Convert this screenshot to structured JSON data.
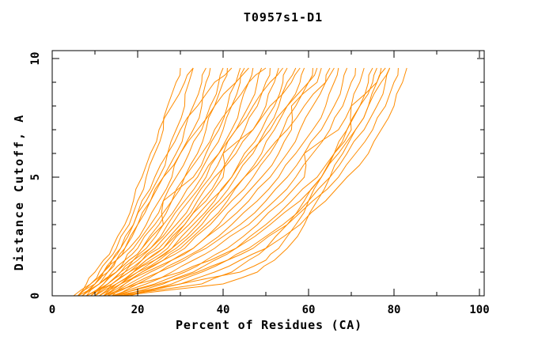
{
  "chart_data": {
    "type": "line",
    "title": "T0957s1-D1",
    "xlabel": "Percent of Residues (CA)",
    "ylabel": "Distance Cutoff, A",
    "xlim": [
      0,
      101
    ],
    "ylim": [
      0,
      10.3
    ],
    "grid": false,
    "legend": "none",
    "x_major_ticks": [
      0,
      20,
      40,
      60,
      80,
      100
    ],
    "x_tick_labels": [
      "0",
      "20",
      "40",
      "60",
      "80",
      "100"
    ],
    "x_minor_tick_step": 10,
    "y_major_ticks": [
      0,
      5,
      10
    ],
    "y_tick_labels": [
      "0",
      "5",
      "10"
    ],
    "y_minor_tick_step": 1,
    "line_color": "#ff8c00",
    "axis_color": "#000000",
    "background_color": "#ffffff",
    "cutoff_levels": [
      0,
      0.5,
      1,
      1.5,
      2,
      3,
      4,
      5,
      6,
      7,
      8,
      9,
      9.6
    ],
    "series_x_at_cutoffs": [
      [
        6,
        9,
        11,
        13,
        15,
        18,
        20,
        22,
        24,
        26,
        27,
        29,
        30
      ],
      [
        6,
        10,
        12,
        14,
        16,
        19,
        22,
        25,
        27,
        29,
        31,
        32,
        33
      ],
      [
        7,
        10,
        13,
        15,
        17,
        20,
        23,
        26,
        29,
        31,
        33,
        35,
        36
      ],
      [
        5,
        9,
        12,
        15,
        18,
        22,
        25,
        28,
        30,
        33,
        35,
        36,
        37
      ],
      [
        8,
        12,
        15,
        17,
        19,
        23,
        26,
        29,
        32,
        35,
        37,
        39,
        40
      ],
      [
        7,
        11,
        14,
        17,
        20,
        24,
        28,
        31,
        34,
        36,
        38,
        40,
        41
      ],
      [
        9,
        13,
        16,
        19,
        22,
        26,
        26,
        33,
        36,
        39,
        41,
        43,
        44
      ],
      [
        6,
        11,
        15,
        18,
        21,
        26,
        30,
        34,
        37,
        40,
        42,
        44,
        45
      ],
      [
        10,
        14,
        17,
        20,
        23,
        28,
        32,
        36,
        39,
        42,
        44,
        46,
        47
      ],
      [
        8,
        13,
        17,
        21,
        24,
        29,
        33,
        37,
        40,
        43,
        46,
        48,
        49
      ],
      [
        11,
        15,
        19,
        22,
        26,
        31,
        35,
        39,
        42,
        45,
        48,
        50,
        51
      ],
      [
        9,
        14,
        18,
        22,
        26,
        31,
        36,
        40,
        40,
        47,
        50,
        52,
        53
      ],
      [
        12,
        16,
        20,
        24,
        28,
        33,
        38,
        42,
        45,
        49,
        52,
        54,
        55
      ],
      [
        10,
        15,
        19,
        24,
        28,
        34,
        39,
        43,
        47,
        50,
        53,
        55,
        57
      ],
      [
        13,
        17,
        21,
        26,
        30,
        36,
        41,
        45,
        49,
        52,
        55,
        58,
        59
      ],
      [
        11,
        16,
        21,
        26,
        31,
        37,
        42,
        47,
        51,
        54,
        57,
        60,
        61
      ],
      [
        14,
        18,
        23,
        28,
        33,
        39,
        44,
        49,
        53,
        56,
        56,
        62,
        63
      ],
      [
        12,
        17,
        22,
        28,
        33,
        40,
        46,
        51,
        55,
        58,
        61,
        64,
        65
      ],
      [
        15,
        20,
        25,
        30,
        35,
        42,
        48,
        53,
        57,
        61,
        64,
        66,
        67
      ],
      [
        13,
        19,
        25,
        31,
        36,
        44,
        50,
        55,
        59,
        63,
        66,
        68,
        69
      ],
      [
        14,
        22,
        28,
        33,
        38,
        46,
        52,
        57,
        61,
        65,
        68,
        70,
        71
      ],
      [
        15,
        24,
        31,
        36,
        41,
        48,
        54,
        59,
        59,
        67,
        70,
        72,
        73
      ],
      [
        16,
        26,
        33,
        38,
        43,
        50,
        56,
        62,
        66,
        69,
        72,
        74,
        75
      ],
      [
        12,
        20,
        30,
        37,
        43,
        51,
        58,
        63,
        67,
        71,
        74,
        76,
        77
      ],
      [
        17,
        28,
        35,
        41,
        46,
        54,
        60,
        65,
        69,
        73,
        76,
        78,
        79
      ],
      [
        14,
        25,
        34,
        41,
        47,
        55,
        61,
        67,
        71,
        75,
        78,
        80,
        81
      ],
      [
        18,
        30,
        38,
        44,
        50,
        58,
        64,
        69,
        74,
        77,
        80,
        82,
        83
      ],
      [
        15,
        35,
        42,
        46,
        50,
        55,
        59,
        63,
        66,
        70,
        70,
        76,
        78
      ],
      [
        16,
        40,
        48,
        52,
        55,
        59,
        62,
        65,
        68,
        71,
        74,
        77,
        79
      ],
      [
        14,
        30,
        44,
        50,
        53,
        57,
        60,
        63,
        66,
        69,
        72,
        75,
        76
      ],
      [
        7,
        10,
        12,
        14,
        16,
        19,
        21,
        24,
        27,
        30,
        34,
        38,
        42
      ],
      [
        8,
        11,
        13,
        15,
        17,
        20,
        23,
        26,
        30,
        34,
        38,
        43,
        46
      ],
      [
        9,
        12,
        15,
        18,
        21,
        25,
        28,
        31,
        35,
        38,
        42,
        46,
        50
      ],
      [
        10,
        13,
        16,
        19,
        23,
        27,
        31,
        35,
        39,
        43,
        47,
        51,
        54
      ],
      [
        11,
        14,
        18,
        21,
        25,
        30,
        34,
        38,
        43,
        47,
        51,
        56,
        58
      ],
      [
        12,
        15,
        19,
        23,
        27,
        32,
        37,
        42,
        46,
        51,
        55,
        60,
        62
      ],
      [
        13,
        16,
        20,
        25,
        29,
        35,
        40,
        45,
        50,
        55,
        59,
        64,
        66
      ],
      [
        6,
        8,
        10,
        12,
        14,
        17,
        19,
        21,
        23,
        25,
        28,
        31,
        33
      ]
    ]
  }
}
